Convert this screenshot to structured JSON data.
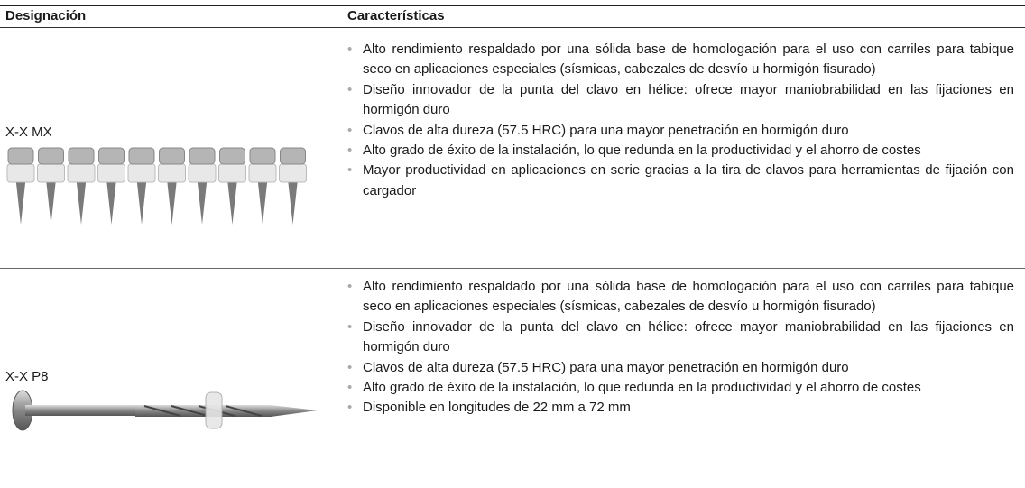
{
  "table": {
    "headers": [
      "Designación",
      "Características"
    ],
    "rows": [
      {
        "designation": "X-X MX",
        "features": [
          "Alto rendimiento respaldado por una sólida base de homologación para el uso con carriles para tabique seco en aplicaciones especiales (sísmicas, cabezales de desvío u hormigón fisurado)",
          "Diseño innovador de la punta del clavo en hélice: ofrece mayor maniobrabilidad en las fijaciones en hormigón duro",
          "Clavos de alta dureza (57.5 HRC) para una mayor penetración en hormigón duro",
          "Alto grado de éxito de la instalación, lo que redunda en la productividad y el ahorro de costes",
          "Mayor productividad en aplicaciones en serie gracias a la tira de clavos para herramientas de fijación con cargador"
        ]
      },
      {
        "designation": "X-X P8",
        "features": [
          "Alto rendimiento respaldado por una sólida base de homologación para el uso con carriles para tabique seco en aplicaciones especiales (sísmicas, cabezales de desvío u hormigón fisurado)",
          "Diseño innovador de la punta del clavo en hélice: ofrece mayor maniobrabilidad en las fijaciones en hormigón duro",
          "Clavos de alta dureza (57.5 HRC) para una mayor penetración en hormigón duro",
          "Alto grado de éxito de la instalación, lo que redunda en la productividad y el ahorro de costes",
          "Disponible en longitudes de 22 mm a 72 mm"
        ]
      }
    ]
  }
}
